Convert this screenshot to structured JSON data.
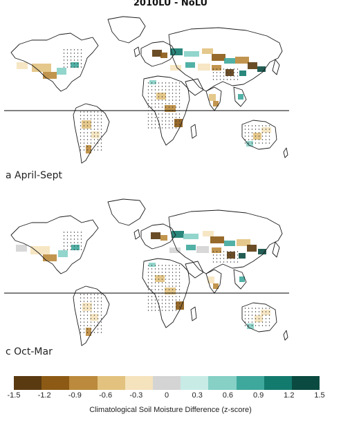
{
  "title": "2010LU - NoLU",
  "panels": [
    {
      "label": "a  April-Sept"
    },
    {
      "label": "c  Oct-Mar"
    }
  ],
  "colorbar": {
    "ticks": [
      "-1.5",
      "-1.2",
      "-0.9",
      "-0.6",
      "-0.3",
      "0",
      "0.3",
      "0.6",
      "0.9",
      "1.2",
      "1.5"
    ],
    "colors": [
      "#5a3a10",
      "#8c5a14",
      "#bb8a3c",
      "#e2c27e",
      "#f5e3bd",
      "#d4d4d4",
      "#c8ebe6",
      "#86d0c6",
      "#3fa89c",
      "#137a6e",
      "#0a4a40"
    ],
    "label": "Climatological Soil Moisture Difference (z-score)"
  },
  "colors": {
    "coastline": "#1a1a1a",
    "equator": "#000000",
    "stipple": "#333333"
  }
}
